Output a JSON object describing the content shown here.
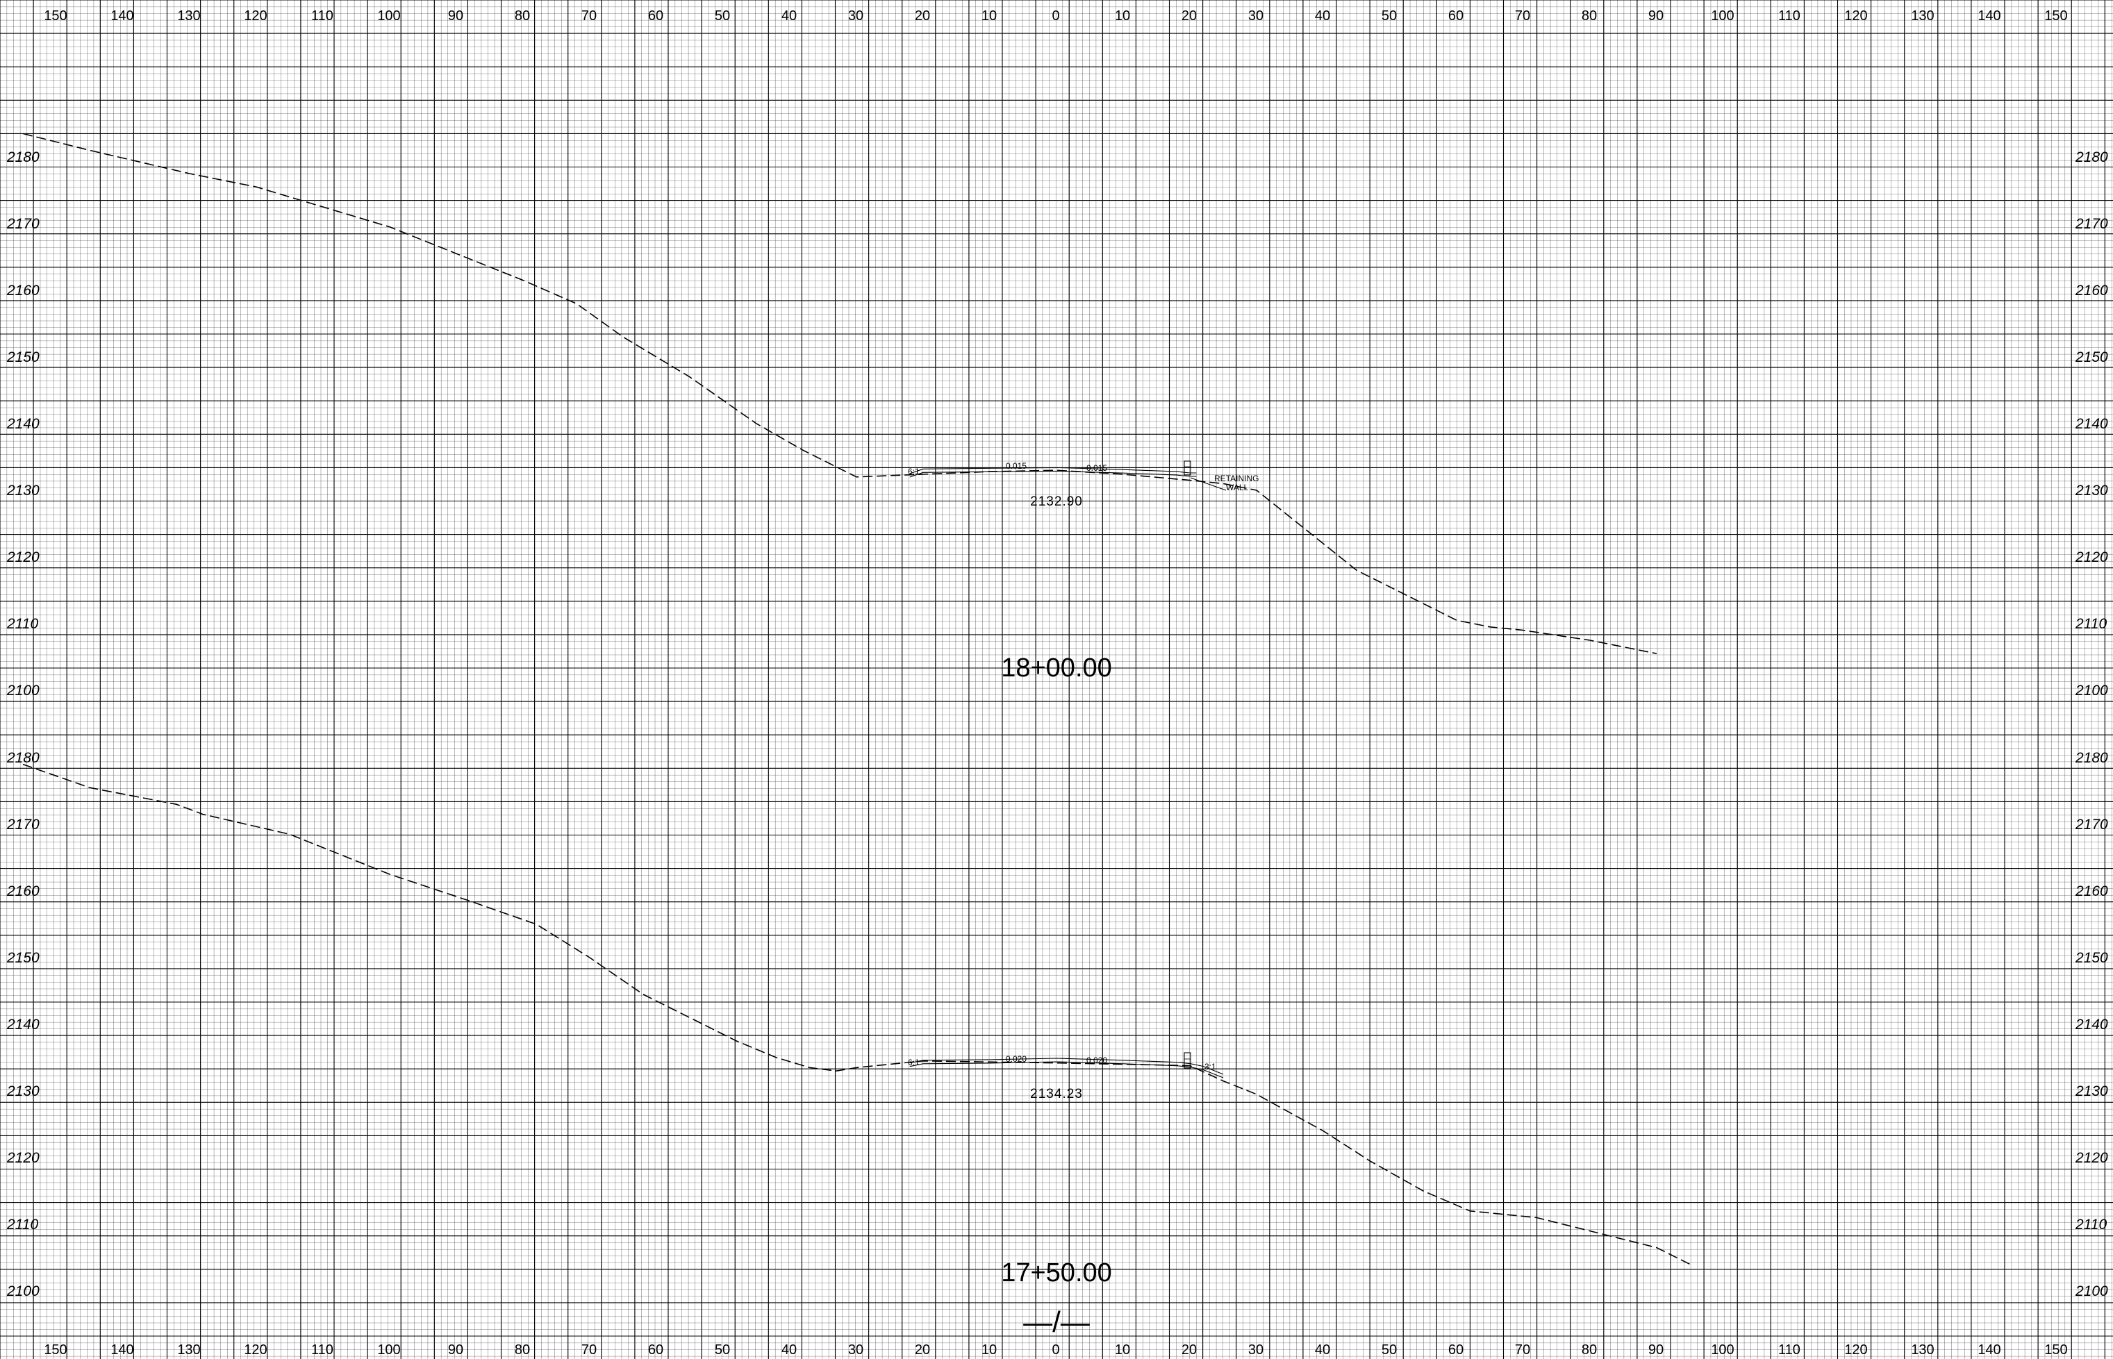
{
  "offset_axis": {
    "labels_top": [
      "150",
      "140",
      "130",
      "120",
      "110",
      "100",
      "90",
      "80",
      "70",
      "60",
      "50",
      "40",
      "30",
      "20",
      "10",
      "0",
      "10",
      "20",
      "30",
      "40",
      "50",
      "60",
      "70",
      "80",
      "90",
      "100",
      "110",
      "120",
      "130",
      "140",
      "150"
    ],
    "labels_bottom": [
      "150",
      "140",
      "130",
      "120",
      "110",
      "100",
      "90",
      "80",
      "70",
      "60",
      "50",
      "40",
      "30",
      "20",
      "10",
      "0",
      "10",
      "20",
      "30",
      "40",
      "50",
      "60",
      "70",
      "80",
      "90",
      "100",
      "110",
      "120",
      "130",
      "140",
      "150"
    ]
  },
  "sections": [
    {
      "station_label": "18+00.00",
      "design_elevation": "2132.90",
      "elevation_labels": [
        "2180",
        "2170",
        "2160",
        "2150",
        "2140",
        "2130",
        "2120",
        "2110",
        "2100"
      ],
      "slope_left": "0.015",
      "slope_right": "0.015",
      "slope_ratio_left": "6:1",
      "wall_note_line1": "RETAINING",
      "wall_note_line2": "WALL",
      "ground_profile": {
        "offsets": [
          -155,
          -145,
          -130,
          -120,
          -110,
          -100,
          -90,
          -80,
          -72,
          -65,
          -55,
          -45,
          -38,
          -33,
          -30,
          -25,
          -20,
          -10,
          0,
          10,
          20,
          25,
          30,
          35,
          45,
          55,
          60,
          65,
          70,
          80,
          90
        ],
        "elevations": [
          2183.5,
          2181,
          2177.5,
          2175.5,
          2172.5,
          2169.5,
          2165.5,
          2161.5,
          2158,
          2153,
          2147,
          2140,
          2136,
          2133.5,
          2132,
          2132.2,
          2132.4,
          2132.8,
          2133,
          2132.4,
          2131.5,
          2131,
          2130,
          2126,
          2118,
          2113,
          2110.5,
          2109.5,
          2109,
          2107.5,
          2105.5
        ]
      },
      "design_profile": {
        "offsets": [
          -22,
          -20,
          -10,
          0,
          10,
          18,
          20,
          21
        ],
        "elevations": [
          2132.5,
          2133.2,
          2133.3,
          2133.4,
          2133.1,
          2132.8,
          2132.6,
          2132.6
        ]
      }
    },
    {
      "station_label": "17+50.00",
      "design_elevation": "2134.23",
      "elevation_labels": [
        "2180",
        "2170",
        "2160",
        "2150",
        "2140",
        "2130",
        "2120",
        "2110",
        "2100"
      ],
      "slope_left": "0.020",
      "slope_right": "0.020",
      "slope_ratio_left": "6:1",
      "slope_ratio_right": "3:1",
      "ground_profile": {
        "offsets": [
          -155,
          -145,
          -132,
          -128,
          -115,
          -100,
          -88,
          -78,
          -70,
          -62,
          -55,
          -48,
          -42,
          -37,
          -33,
          -30,
          -25,
          -20,
          0,
          20,
          25,
          30,
          40,
          47,
          55,
          62,
          72,
          80,
          90,
          95
        ],
        "elevations": [
          2179,
          2175.5,
          2173,
          2171.5,
          2168.5,
          2162.5,
          2158.5,
          2155,
          2150,
          2144.5,
          2141,
          2137.5,
          2135,
          2133.5,
          2133,
          2133.5,
          2134,
          2134.5,
          2134.2,
          2133.8,
          2131.5,
          2129.5,
          2124,
          2119.5,
          2115,
          2112,
          2111,
          2109,
          2106.5,
          2104
        ]
      },
      "design_profile": {
        "offsets": [
          -22,
          -20,
          -10,
          0,
          10,
          18,
          20,
          22,
          25
        ],
        "elevations": [
          2134.2,
          2134.6,
          2134.7,
          2134.9,
          2134.6,
          2134.3,
          2134.1,
          2133.7,
          2132.5
        ]
      }
    }
  ],
  "centerline_symbol": "—/—"
}
